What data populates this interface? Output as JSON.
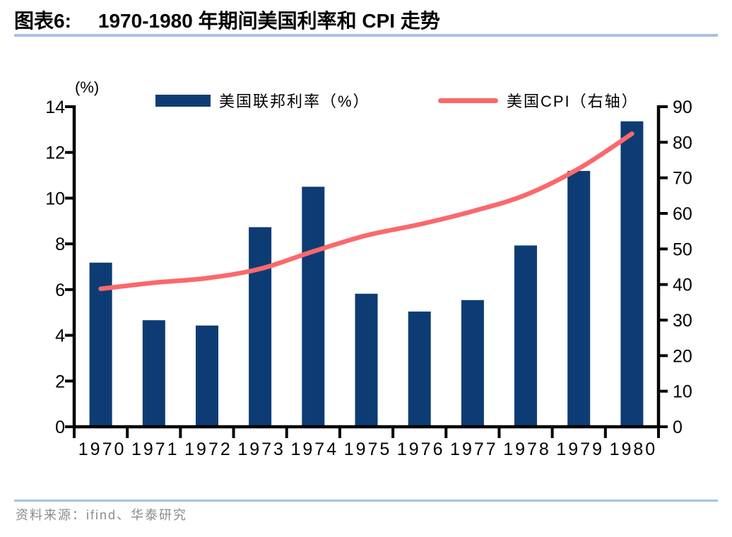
{
  "header": {
    "title_prefix": "图表6:",
    "title_text": "1970-1980 年期间美国利率和 CPI 走势",
    "rule_color": "#a6c3e3"
  },
  "chart_data": {
    "type": "bar+line",
    "title": "1970-1980 年期间美国利率和 CPI 走势",
    "categories": [
      "1970",
      "1971",
      "1972",
      "1973",
      "1974",
      "1975",
      "1976",
      "1977",
      "1978",
      "1979",
      "1980"
    ],
    "series": [
      {
        "name": "美国联邦利率（%）",
        "type": "bar",
        "axis": "left",
        "color": "#0d3c75",
        "values": [
          7.18,
          4.66,
          4.43,
          8.73,
          10.5,
          5.82,
          5.04,
          5.54,
          7.93,
          11.19,
          13.36
        ]
      },
      {
        "name": "美国CPI（右轴）",
        "type": "line",
        "axis": "right",
        "color": "#fa696c",
        "values": [
          38.8,
          40.5,
          41.8,
          44.4,
          49.3,
          53.8,
          56.9,
          60.6,
          65.2,
          72.6,
          82.4
        ]
      }
    ],
    "left_axis": {
      "unit_label": "(%)",
      "min": 0,
      "max": 14,
      "step": 2,
      "ticks": [
        0,
        2,
        4,
        6,
        8,
        10,
        12,
        14
      ]
    },
    "right_axis": {
      "min": 0,
      "max": 90,
      "step": 10,
      "ticks": [
        0,
        10,
        20,
        30,
        40,
        50,
        60,
        70,
        80,
        90
      ]
    },
    "legend_position": "top",
    "grid": false,
    "axis_color": "#000000"
  },
  "footer": {
    "source_prefix": "资料来源：",
    "source_text": "ifind、华泰研究",
    "rule_color": "#a6c3e3"
  }
}
